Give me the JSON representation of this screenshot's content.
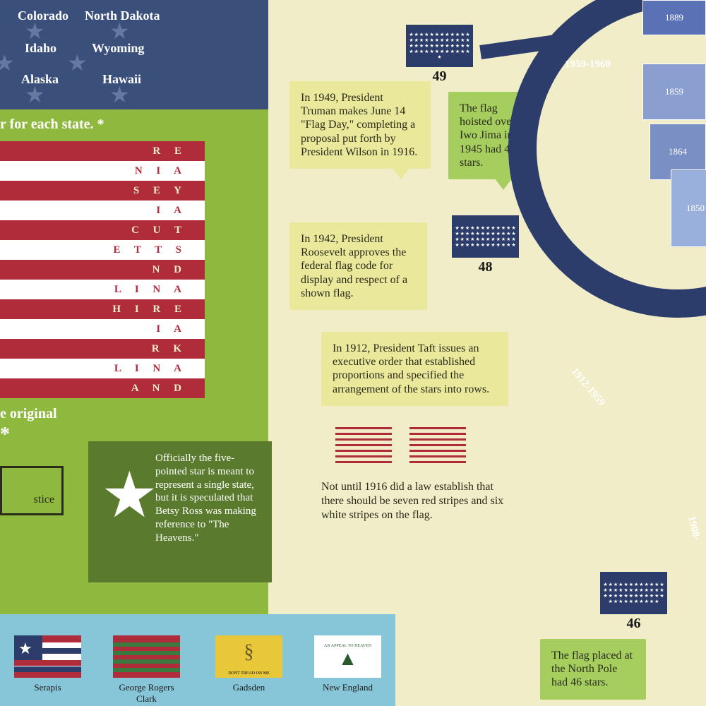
{
  "canton": {
    "states": [
      "Colorado",
      "North Dakota",
      "Idaho",
      "Wyoming",
      "Alaska",
      "Hawaii"
    ]
  },
  "green": {
    "heading1": "r for each state. *",
    "heading2": "e original",
    "asterisk": "*",
    "stripes": [
      "R E",
      "N I A",
      "S E Y",
      "I A",
      "C U T",
      "E T T S",
      "N D",
      "L I N A",
      "H I R E",
      "I A",
      "R K",
      "L I N A",
      "A N D"
    ],
    "justice": "stice"
  },
  "darkBox": {
    "text": "Officially the five-pointed star is meant to represent a single state, but it is speculated that Betsy Ross was making reference to \"The Heavens.\""
  },
  "callouts": {
    "truman": "In 1949, President Truman makes June 14 \"Flag Day,\" completing a proposal put forth by President Wilson in 1916.",
    "iwojima": "The flag hoisted over Iwo Jima in 1945 had 48 stars.",
    "roosevelt": "In 1942, President Roosevelt approves the federal flag code for display and respect of a shown flag.",
    "taft": "In 1912, President Taft issues an executive order that established proportions and specified the arrangement of the stars into rows.",
    "stripes1916": "Not until 1916 did a law establish that there should be seven red stripes and six white stripes on the flag.",
    "northpole": "The flag placed at the North Pole had 46 stars."
  },
  "flags": {
    "49": "49",
    "48": "48",
    "46": "46"
  },
  "arc": {
    "label1": "1959-1960",
    "label2": "1912-1959",
    "label3": "1908-"
  },
  "map": {
    "years": [
      "1889",
      "1859",
      "1864",
      "1850"
    ]
  },
  "historic": [
    {
      "name": "Serapis"
    },
    {
      "name": "George Rogers Clark"
    },
    {
      "name": "Gadsden",
      "motto": "DONT TREAD ON ME"
    },
    {
      "name": "New England",
      "motto": "AN APPEAL TO HEAVEN"
    }
  ],
  "colors": {
    "navy": "#2d3d6b",
    "canton": "#3a4f7a",
    "green": "#8fb83e",
    "darkgreen": "#5a7a2e",
    "red": "#b02c3a",
    "cream": "#f0edc8",
    "yellow": "#eae89a",
    "lightgreen": "#a5ce5f",
    "skyblue": "#87c5d8"
  }
}
